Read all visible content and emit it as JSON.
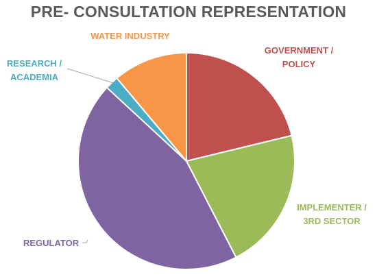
{
  "chart_data": {
    "type": "pie",
    "title": "PRE- CONSULTATION REPRESENTATION",
    "slices": [
      {
        "label": "GOVERNMENT / POLICY",
        "label_lines": [
          "GOVERNMENT /",
          "POLICY"
        ],
        "value": 21,
        "color": "#C0504D"
      },
      {
        "label": "IMPLEMENTER / 3RD SECTOR",
        "label_lines": [
          "IMPLEMENTER /",
          "3RD SECTOR"
        ],
        "value": 21,
        "color": "#9BBB59"
      },
      {
        "label": "REGULATOR",
        "label_lines": [
          "REGULATOR"
        ],
        "value": 44,
        "color": "#8064A2"
      },
      {
        "label": "RESEARCH / ACADEMIA",
        "label_lines": [
          "RESEARCH /",
          "ACADEMIA"
        ],
        "value": 2,
        "color": "#4BACC6"
      },
      {
        "label": "WATER INDUSTRY",
        "label_lines": [
          "WATER INDUSTRY"
        ],
        "value": 11,
        "color": "#F79646"
      }
    ],
    "legend": "none",
    "data_labels": "category names outside slices"
  }
}
